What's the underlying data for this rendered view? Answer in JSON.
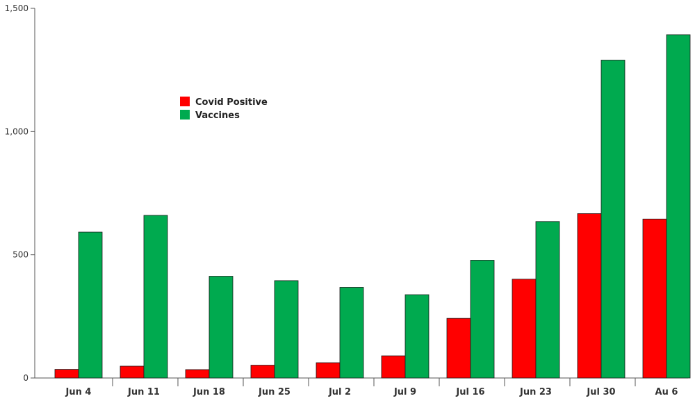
{
  "chart_data": {
    "type": "bar",
    "categories": [
      "Jun 4",
      "Jun 11",
      "Jun 18",
      "Jun 25",
      "Jul 2",
      "Jul 9",
      "Jul 16",
      "Jun 23",
      "Jul 30",
      "Au 6"
    ],
    "series": [
      {
        "name": "Covid Positive",
        "color": "#ff0000",
        "values": [
          35,
          48,
          34,
          52,
          62,
          90,
          242,
          401,
          667,
          645
        ]
      },
      {
        "name": "Vaccines",
        "color": "#00aa4f",
        "values": [
          592,
          660,
          413,
          395,
          368,
          338,
          478,
          635,
          1290,
          1393
        ]
      }
    ],
    "y_ticks": [
      {
        "value": 0,
        "label": "0"
      },
      {
        "value": 500,
        "label": "500"
      },
      {
        "value": 1000,
        "label": "1,000"
      },
      {
        "value": 1500,
        "label": "1,500"
      }
    ],
    "ylim": [
      0,
      1500
    ],
    "grid": false,
    "legend_position": "upper-left"
  }
}
